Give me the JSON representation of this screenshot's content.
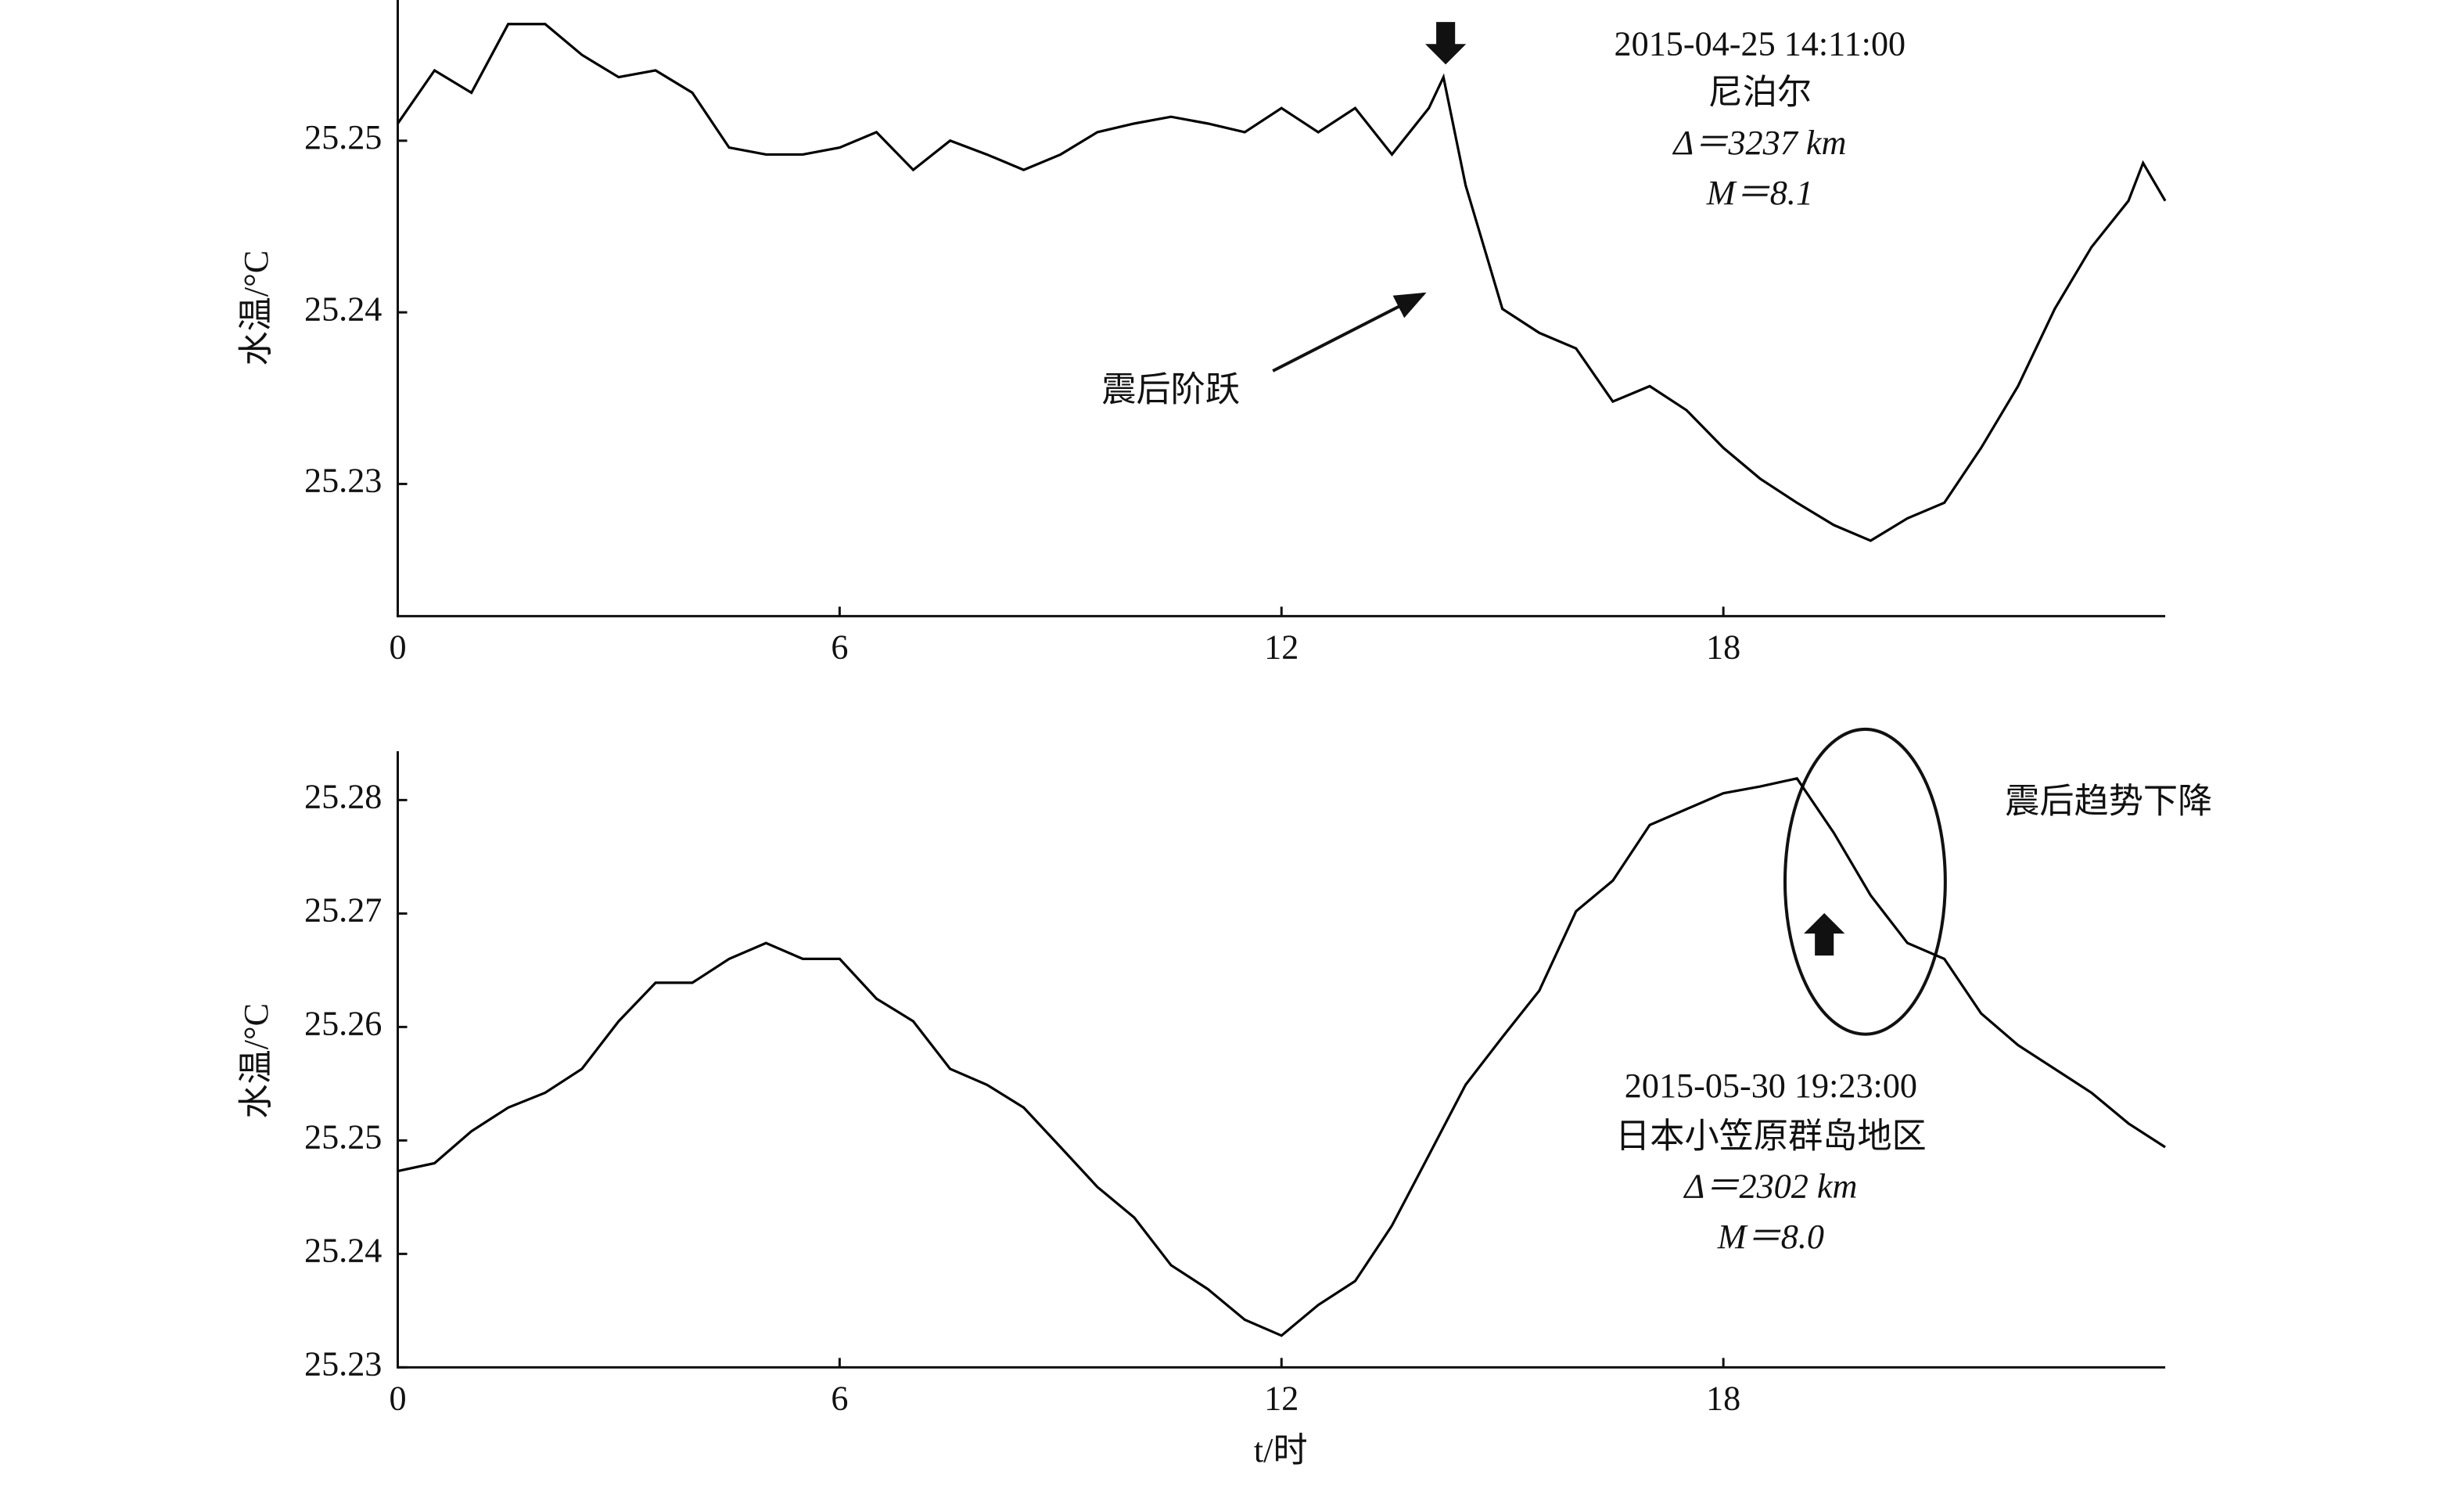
{
  "chart_data": [
    {
      "type": "line",
      "color": "#000000",
      "ylabel": "水温/°C",
      "x": [
        0,
        0.5,
        1,
        1.5,
        2,
        2.5,
        3,
        3.5,
        4,
        4.5,
        5,
        5.5,
        6,
        6.5,
        7,
        7.5,
        8,
        8.5,
        9,
        9.5,
        10,
        10.5,
        11,
        11.5,
        12,
        12.5,
        13,
        13.5,
        14,
        14.2,
        14.5,
        15,
        15.5,
        16,
        16.5,
        17,
        17.5,
        18,
        18.5,
        19,
        19.5,
        20,
        20.5,
        21,
        21.5,
        22,
        22.5,
        23,
        23.5,
        23.7,
        24
      ],
      "values": [
        25.251,
        25.2541,
        25.2528,
        25.2568,
        25.2568,
        25.255,
        25.2537,
        25.2541,
        25.2528,
        25.2496,
        25.2492,
        25.2492,
        25.2496,
        25.2505,
        25.2483,
        25.25,
        25.2492,
        25.2483,
        25.2492,
        25.2505,
        25.251,
        25.2514,
        25.251,
        25.2505,
        25.2519,
        25.2505,
        25.2519,
        25.2492,
        25.2519,
        25.2537,
        25.2474,
        25.2402,
        25.2388,
        25.2379,
        25.2348,
        25.2357,
        25.2343,
        25.2321,
        25.2303,
        25.2289,
        25.2276,
        25.2267,
        25.228,
        25.2289,
        25.2321,
        25.2357,
        25.2402,
        25.2438,
        25.2465,
        25.2487,
        25.2465
      ],
      "xlim": [
        0,
        24
      ],
      "xticks": [
        0,
        6,
        12,
        18
      ],
      "ylim": [
        25.2223,
        25.2582
      ],
      "yticks": [
        25.25,
        25.24,
        25.23
      ],
      "annotations": [
        "2015-04-25 14:11:00",
        "尼泊尔",
        "Δ＝3237 km",
        "M＝8.1",
        "震后阶跃"
      ]
    },
    {
      "type": "line",
      "color": "#000000",
      "ylabel": "水温/°C",
      "xlabel": "t/时",
      "x": [
        0,
        0.5,
        1,
        1.5,
        2,
        2.5,
        3,
        3.5,
        4,
        4.5,
        5,
        5.5,
        6,
        6.5,
        7,
        7.5,
        8,
        8.5,
        9,
        9.5,
        10,
        10.5,
        11,
        11.5,
        12,
        12.5,
        13,
        13.5,
        14,
        14.5,
        15,
        15.5,
        16,
        16.5,
        17,
        17.5,
        18,
        18.5,
        19,
        19.5,
        20,
        20.5,
        21,
        21.5,
        22,
        22.5,
        23,
        23.5,
        24
      ],
      "values": [
        25.2473,
        25.248,
        25.2508,
        25.2529,
        25.2542,
        25.2563,
        25.2605,
        25.2639,
        25.2639,
        25.266,
        25.2674,
        25.266,
        25.266,
        25.2625,
        25.2605,
        25.2563,
        25.2549,
        25.2529,
        25.2494,
        25.2459,
        25.2432,
        25.239,
        25.2369,
        25.2342,
        25.2328,
        25.2355,
        25.2376,
        25.2425,
        25.2487,
        25.2549,
        25.2591,
        25.2632,
        25.2702,
        25.2729,
        25.2778,
        25.2792,
        25.2806,
        25.2812,
        25.2819,
        25.2771,
        25.2716,
        25.2674,
        25.266,
        25.2612,
        25.2584,
        25.2563,
        25.2542,
        25.2515,
        25.2494
      ],
      "xlim": [
        0,
        24
      ],
      "xticks": [
        0,
        6,
        12,
        18
      ],
      "ylim": [
        25.23,
        25.2843
      ],
      "yticks": [
        25.28,
        25.27,
        25.26,
        25.25,
        25.24,
        25.23
      ],
      "annotations": [
        "2015-05-30 19:23:00",
        "日本小笠原群岛地区",
        "Δ＝2302 km",
        "M＝8.0",
        "震后趋势下降"
      ]
    }
  ]
}
